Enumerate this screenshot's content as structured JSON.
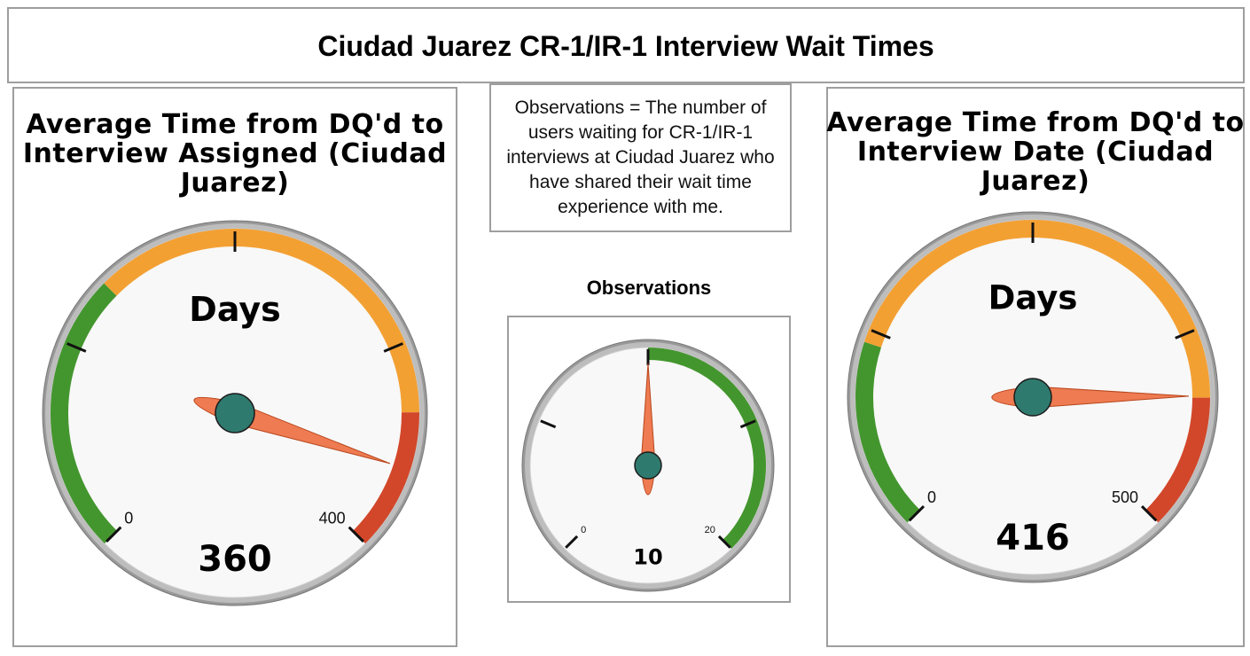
{
  "header": {
    "title": "Ciudad Juarez CR-1/IR-1 Interview Wait Times"
  },
  "note": {
    "text": "Observations = The number of users waiting for CR-1/IR-1 interviews at Ciudad Juarez who have shared their wait time experience with me."
  },
  "colors": {
    "green": "#43962e",
    "orange": "#f3a033",
    "red": "#d2472a",
    "needle": "#ee7b51",
    "hub": "#2f7a6e",
    "face": "#f8f8f8",
    "rim": "#bdbdbd"
  },
  "chart_data": [
    {
      "type": "gauge",
      "title": "Average Time from DQ'd to Interview Assigned (Ciudad Juarez)",
      "label": "Days",
      "value": 360,
      "value_text": "360",
      "min": 0,
      "max": 400,
      "min_label": "0",
      "max_label": "400",
      "bands": [
        {
          "from": 0,
          "to": 133,
          "color": "green"
        },
        {
          "from": 133,
          "to": 333,
          "color": "orange"
        },
        {
          "from": 333,
          "to": 400,
          "color": "red"
        }
      ]
    },
    {
      "type": "gauge",
      "title": "Observations",
      "label": "",
      "value": 10,
      "value_text": "10",
      "min": 0,
      "max": 20,
      "min_label": "0",
      "max_label": "20",
      "bands": [
        {
          "from": 10,
          "to": 20,
          "color": "green"
        }
      ]
    },
    {
      "type": "gauge",
      "title": "Average Time from DQ'd to Interview Date (Ciudad Juarez)",
      "label": "Days",
      "value": 416,
      "value_text": "416",
      "min": 0,
      "max": 500,
      "min_label": "0",
      "max_label": "500",
      "bands": [
        {
          "from": 0,
          "to": 117,
          "color": "green"
        },
        {
          "from": 117,
          "to": 417,
          "color": "orange"
        },
        {
          "from": 417,
          "to": 500,
          "color": "red"
        }
      ]
    }
  ]
}
